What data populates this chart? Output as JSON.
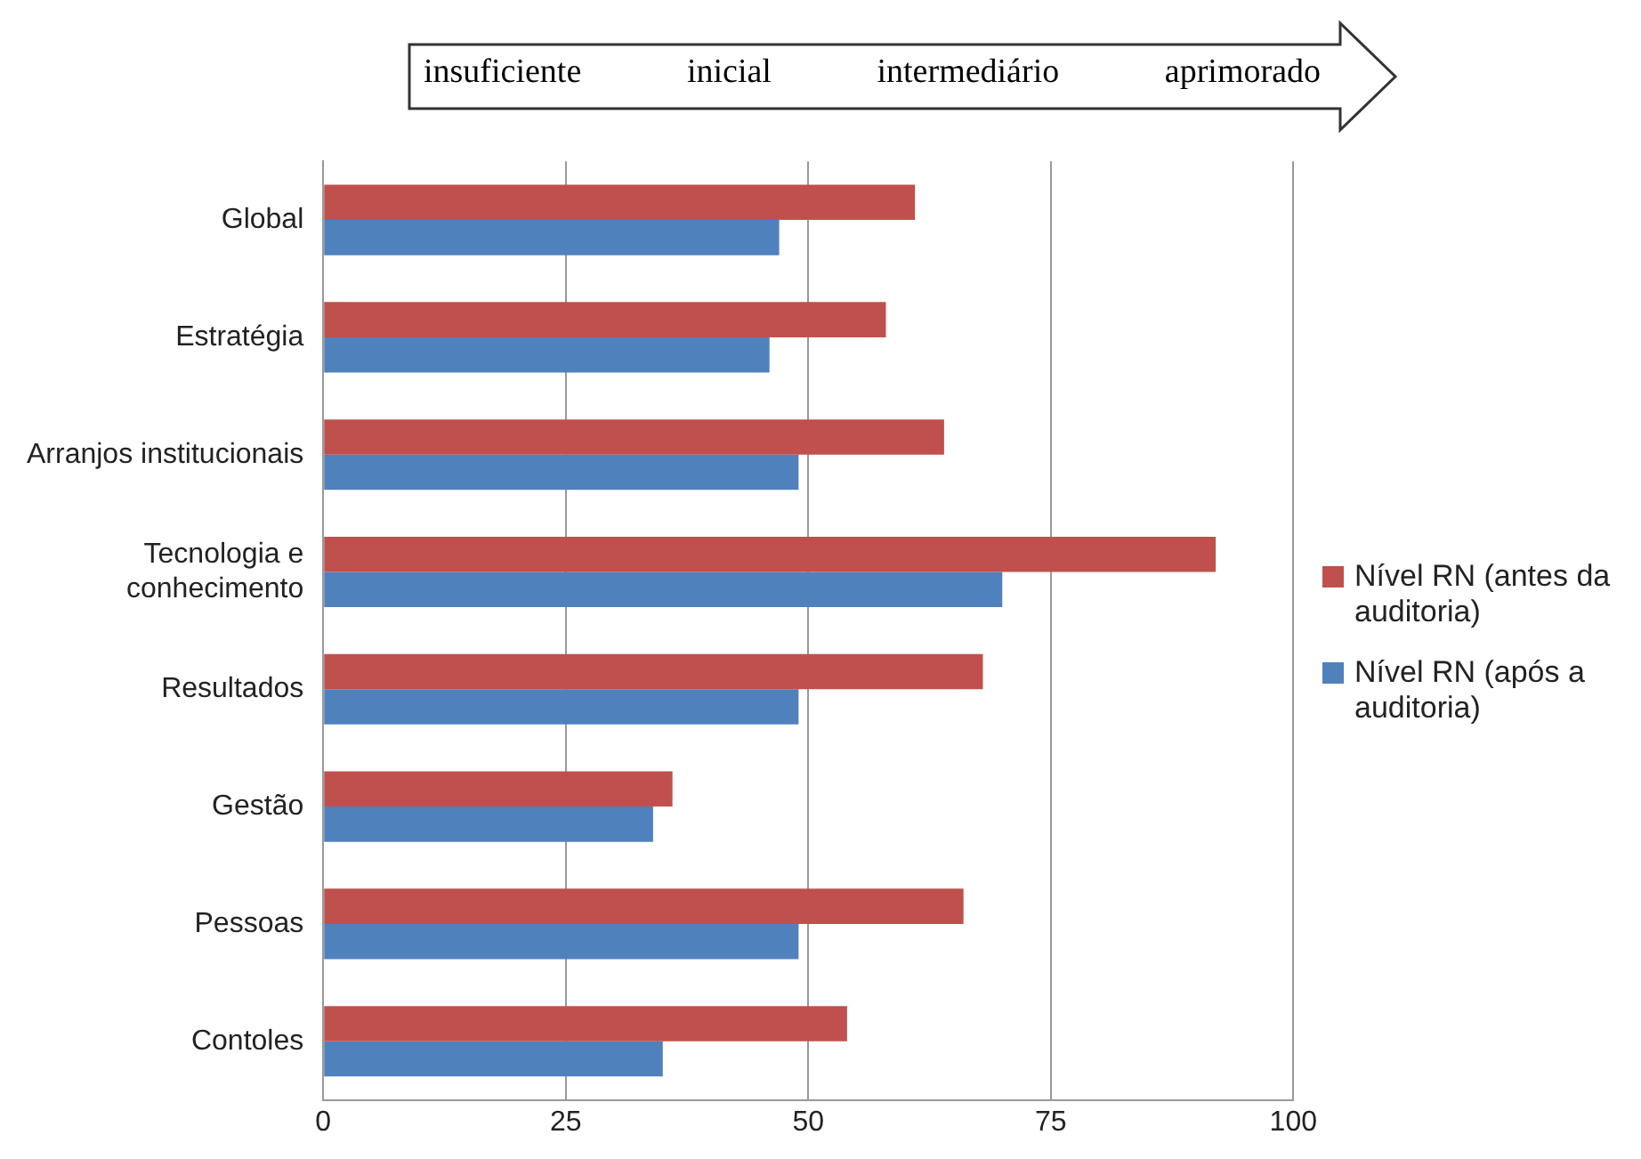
{
  "chart_data": {
    "type": "bar",
    "orientation": "horizontal",
    "categories": [
      "Global",
      "Estratégia",
      "Arranjos institucionais",
      "Tecnologia e conhecimento",
      "Resultados",
      "Gestão",
      "Pessoas",
      "Contoles"
    ],
    "series": [
      {
        "name": "Nível RN (antes da auditoria)",
        "color": "#c0504d",
        "values": [
          61,
          58,
          64,
          92,
          68,
          36,
          66,
          54
        ]
      },
      {
        "name": "Nível RN (após a auditoria)",
        "color": "#4f81bd",
        "values": [
          47,
          46,
          49,
          70,
          49,
          34,
          49,
          35
        ]
      }
    ],
    "xlim": [
      0,
      100
    ],
    "xticks": [
      0,
      25,
      50,
      75,
      100
    ],
    "grid": "x",
    "legend": "right",
    "annotations": [
      "insuficiente",
      "inicial",
      "intermediário",
      "aprimorado"
    ]
  }
}
